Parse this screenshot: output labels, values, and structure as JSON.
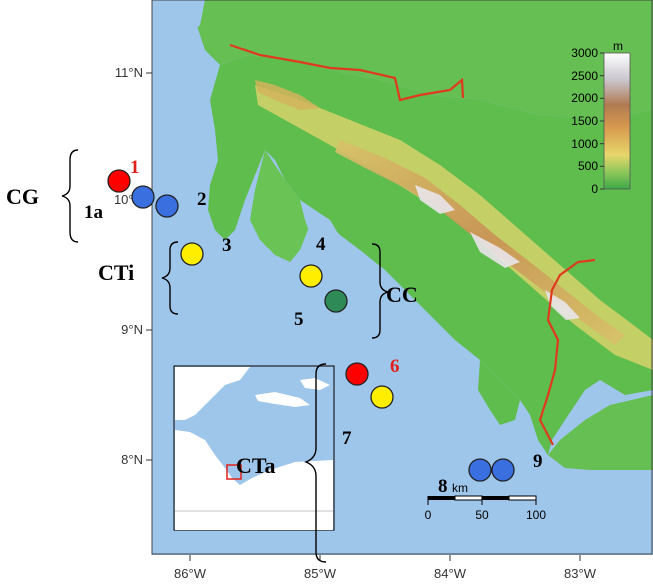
{
  "map": {
    "lat_labels": [
      "11°N",
      "10°N",
      "9°N",
      "8°N"
    ],
    "lon_labels": [
      "86°W",
      "85°W",
      "84°W",
      "83°W"
    ]
  },
  "legend": {
    "unit": "m",
    "ticks": [
      "3000",
      "2500",
      "2000",
      "1500",
      "1000",
      "500",
      "0"
    ]
  },
  "scale_bar": {
    "unit": "km",
    "ticks": [
      "0",
      "50",
      "100"
    ]
  },
  "groups": {
    "cg": "CG",
    "cti": "CTi",
    "cc": "CC",
    "cta": "CTa"
  },
  "sites": [
    {
      "label": "1",
      "color": "#ff0000",
      "label_color": "#e0201a"
    },
    {
      "label": "1a",
      "color": "#3a6fe0",
      "label_color": "#000000"
    },
    {
      "label": "2",
      "color": "#3a6fe0",
      "label_color": "#000000"
    },
    {
      "label": "3",
      "color": "#ffee00",
      "label_color": "#000000"
    },
    {
      "label": "4",
      "color": "#ffee00",
      "label_color": "#000000"
    },
    {
      "label": "5",
      "color": "#2e8b57",
      "label_color": "#000000"
    },
    {
      "label": "6",
      "color": "#ff0000",
      "label_color": "#e0201a"
    },
    {
      "label": "7",
      "color": "#ffee00",
      "label_color": "#000000"
    },
    {
      "label": "8",
      "color": "#3a6fe0",
      "label_color": "#000000"
    },
    {
      "label": "9",
      "color": "#3a6fe0",
      "label_color": "#000000"
    }
  ],
  "colors": {
    "ocean": "#9ec5ea",
    "lowland": "#5fbd4e",
    "border": "#e03a1e",
    "inset_highlight": "#e0201a"
  }
}
